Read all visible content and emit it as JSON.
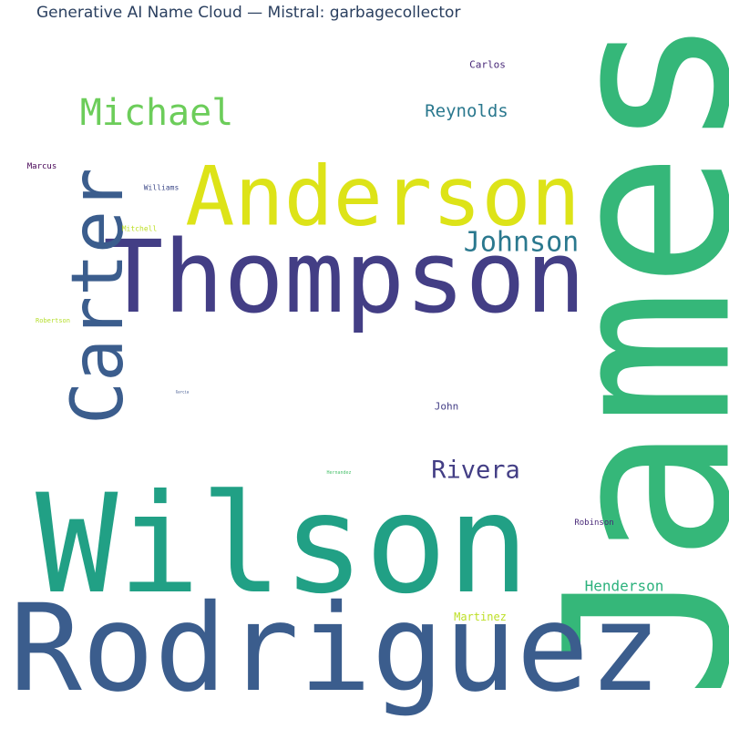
{
  "title": "Generative AI Name Cloud — Mistral: garbagecollector",
  "chart_data": {
    "type": "wordcloud",
    "title": "Generative AI Name Cloud — Mistral: garbagecollector",
    "words": [
      {
        "text": "James",
        "color": "#35b779",
        "orientation": "vertical"
      },
      {
        "text": "Wilson",
        "color": "#21a085",
        "orientation": "horizontal"
      },
      {
        "text": "Rodriguez",
        "color": "#3b5d8d",
        "orientation": "horizontal"
      },
      {
        "text": "Thompson",
        "color": "#433e85",
        "orientation": "horizontal"
      },
      {
        "text": "Anderson",
        "color": "#dde318",
        "orientation": "horizontal"
      },
      {
        "text": "Carter",
        "color": "#3b5d8d",
        "orientation": "vertical"
      },
      {
        "text": "Michael",
        "color": "#6ccd5a",
        "orientation": "horizontal"
      },
      {
        "text": "Johnson",
        "color": "#2a788e",
        "orientation": "horizontal"
      },
      {
        "text": "Rivera",
        "color": "#433e85",
        "orientation": "horizontal"
      },
      {
        "text": "Reynolds",
        "color": "#2a788e",
        "orientation": "horizontal"
      },
      {
        "text": "Henderson",
        "color": "#2db27d",
        "orientation": "horizontal"
      },
      {
        "text": "Martinez",
        "color": "#bddf26",
        "orientation": "horizontal"
      },
      {
        "text": "John",
        "color": "#433e85",
        "orientation": "horizontal"
      },
      {
        "text": "Carlos",
        "color": "#482878",
        "orientation": "horizontal"
      },
      {
        "text": "Robinson",
        "color": "#482878",
        "orientation": "horizontal"
      },
      {
        "text": "Marcus",
        "color": "#440154",
        "orientation": "horizontal"
      },
      {
        "text": "Williams",
        "color": "#3e4a89",
        "orientation": "horizontal"
      },
      {
        "text": "Mitchell",
        "color": "#bddf26",
        "orientation": "horizontal"
      },
      {
        "text": "Robertson",
        "color": "#b5de2b",
        "orientation": "horizontal"
      },
      {
        "text": "Hernandez",
        "color": "#4ac16d",
        "orientation": "horizontal"
      },
      {
        "text": "Garcia",
        "color": "#3b528b",
        "orientation": "horizontal"
      }
    ]
  }
}
